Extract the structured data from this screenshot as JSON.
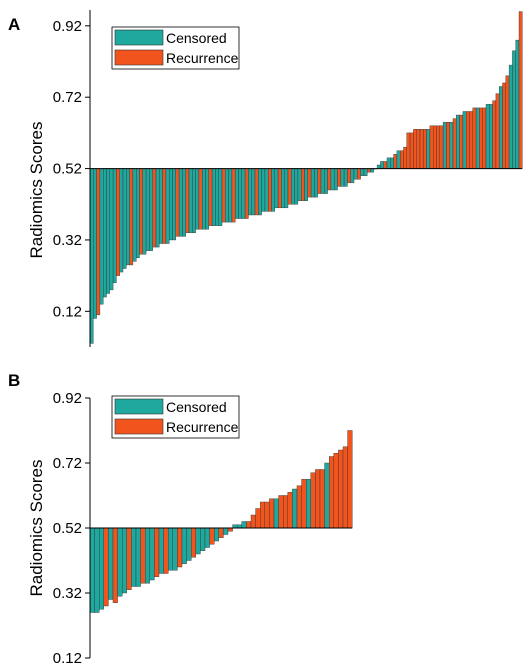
{
  "colors": {
    "censored": "#1fa89e",
    "recurrence": "#f2541e",
    "bar_edge": "#333333",
    "axis": "#000000"
  },
  "chart_data": [
    {
      "panel": "A",
      "type": "bar",
      "orientation": "waterfall",
      "baseline": 0.52,
      "ylim": [
        0.02,
        0.97
      ],
      "yticks": [
        0.12,
        0.32,
        0.52,
        0.72,
        0.92
      ],
      "ytick_labels": [
        "0.12",
        "0.32",
        "0.52",
        "0.72",
        "0.92"
      ],
      "ylabel": "Radiomics Scores",
      "legend": {
        "position": "top-left",
        "entries": [
          {
            "label": "Censored",
            "key": "C"
          },
          {
            "label": "Recurrence",
            "key": "R"
          }
        ]
      },
      "values": [
        0.03,
        0.1,
        0.11,
        0.14,
        0.16,
        0.17,
        0.18,
        0.2,
        0.22,
        0.23,
        0.24,
        0.25,
        0.25,
        0.26,
        0.27,
        0.28,
        0.28,
        0.29,
        0.29,
        0.3,
        0.3,
        0.31,
        0.31,
        0.31,
        0.32,
        0.32,
        0.33,
        0.33,
        0.33,
        0.34,
        0.34,
        0.34,
        0.35,
        0.35,
        0.35,
        0.35,
        0.36,
        0.36,
        0.36,
        0.36,
        0.37,
        0.37,
        0.37,
        0.37,
        0.38,
        0.38,
        0.38,
        0.38,
        0.39,
        0.39,
        0.39,
        0.39,
        0.4,
        0.4,
        0.4,
        0.4,
        0.41,
        0.41,
        0.41,
        0.41,
        0.42,
        0.42,
        0.42,
        0.43,
        0.43,
        0.43,
        0.44,
        0.44,
        0.44,
        0.45,
        0.45,
        0.45,
        0.46,
        0.46,
        0.46,
        0.47,
        0.47,
        0.47,
        0.48,
        0.48,
        0.49,
        0.49,
        0.5,
        0.5,
        0.51,
        0.51,
        0.52,
        0.53,
        0.54,
        0.54,
        0.55,
        0.55,
        0.56,
        0.57,
        0.57,
        0.58,
        0.62,
        0.62,
        0.63,
        0.63,
        0.63,
        0.63,
        0.63,
        0.64,
        0.64,
        0.64,
        0.64,
        0.65,
        0.65,
        0.65,
        0.66,
        0.67,
        0.67,
        0.68,
        0.68,
        0.68,
        0.69,
        0.69,
        0.69,
        0.69,
        0.7,
        0.7,
        0.71,
        0.73,
        0.75,
        0.76,
        0.78,
        0.81,
        0.85,
        0.88,
        0.96
      ],
      "groups": [
        "C",
        "C",
        "R",
        "C",
        "C",
        "C",
        "C",
        "C",
        "R",
        "C",
        "C",
        "C",
        "R",
        "C",
        "C",
        "R",
        "C",
        "C",
        "C",
        "R",
        "C",
        "C",
        "R",
        "C",
        "C",
        "C",
        "R",
        "C",
        "C",
        "R",
        "C",
        "C",
        "C",
        "R",
        "C",
        "C",
        "R",
        "C",
        "C",
        "C",
        "R",
        "C",
        "C",
        "R",
        "C",
        "C",
        "C",
        "R",
        "C",
        "C",
        "R",
        "C",
        "C",
        "C",
        "R",
        "C",
        "C",
        "R",
        "C",
        "C",
        "R",
        "C",
        "C",
        "C",
        "R",
        "C",
        "R",
        "C",
        "C",
        "R",
        "C",
        "C",
        "R",
        "C",
        "C",
        "R",
        "C",
        "C",
        "R",
        "C",
        "C",
        "R",
        "C",
        "C",
        "R",
        "C",
        "C",
        "C",
        "C",
        "R",
        "C",
        "C",
        "R",
        "C",
        "R",
        "R",
        "R",
        "R",
        "R",
        "R",
        "R",
        "R",
        "C",
        "R",
        "R",
        "R",
        "R",
        "C",
        "R",
        "C",
        "R",
        "C",
        "R",
        "C",
        "R",
        "R",
        "R",
        "C",
        "R",
        "R",
        "C",
        "C",
        "R",
        "R",
        "C",
        "R",
        "R",
        "C",
        "C",
        "C",
        "R"
      ]
    },
    {
      "panel": "B",
      "type": "bar",
      "orientation": "waterfall",
      "baseline": 0.52,
      "ylim": [
        0.12,
        0.92
      ],
      "yticks": [
        0.12,
        0.32,
        0.52,
        0.72,
        0.92
      ],
      "ytick_labels": [
        "0.12",
        "0.32",
        "0.52",
        "0.72",
        "0.92"
      ],
      "ylabel": "Radiomics Scores",
      "legend": {
        "position": "top-left",
        "entries": [
          {
            "label": "Censored",
            "key": "C"
          },
          {
            "label": "Recurrence",
            "key": "R"
          }
        ]
      },
      "values": [
        0.26,
        0.26,
        0.27,
        0.28,
        0.3,
        0.29,
        0.31,
        0.32,
        0.33,
        0.34,
        0.34,
        0.35,
        0.35,
        0.36,
        0.37,
        0.38,
        0.38,
        0.39,
        0.39,
        0.4,
        0.41,
        0.42,
        0.43,
        0.44,
        0.45,
        0.46,
        0.47,
        0.48,
        0.49,
        0.5,
        0.51,
        0.53,
        0.53,
        0.54,
        0.54,
        0.56,
        0.58,
        0.6,
        0.6,
        0.61,
        0.61,
        0.62,
        0.62,
        0.63,
        0.64,
        0.65,
        0.67,
        0.67,
        0.69,
        0.7,
        0.7,
        0.72,
        0.74,
        0.75,
        0.76,
        0.77,
        0.82
      ],
      "groups": [
        "C",
        "C",
        "C",
        "R",
        "C",
        "R",
        "C",
        "C",
        "R",
        "C",
        "C",
        "R",
        "C",
        "C",
        "R",
        "C",
        "R",
        "C",
        "C",
        "R",
        "C",
        "C",
        "R",
        "C",
        "C",
        "C",
        "R",
        "C",
        "R",
        "C",
        "R",
        "C",
        "C",
        "C",
        "R",
        "R",
        "R",
        "R",
        "R",
        "R",
        "C",
        "R",
        "R",
        "R",
        "C",
        "R",
        "R",
        "C",
        "R",
        "R",
        "R",
        "C",
        "R",
        "R",
        "R",
        "R",
        "R"
      ]
    }
  ]
}
